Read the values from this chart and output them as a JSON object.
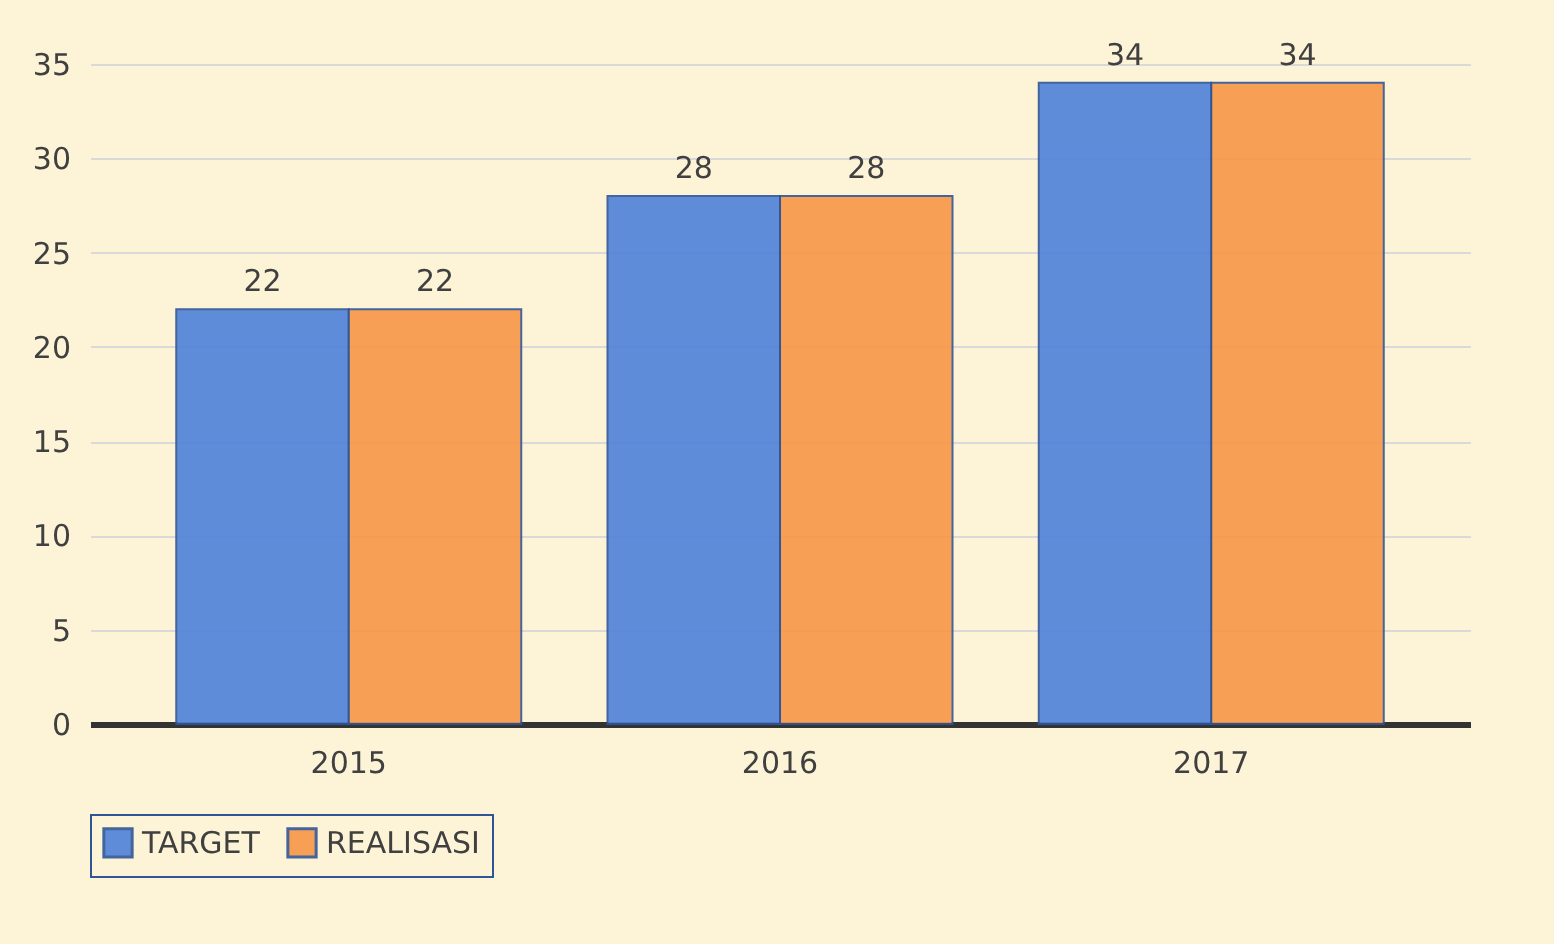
{
  "chart_data": {
    "type": "bar",
    "categories": [
      "2015",
      "2016",
      "2017"
    ],
    "series": [
      {
        "name": "TARGET",
        "color": "#4f81d9",
        "values": [
          22,
          28,
          34
        ]
      },
      {
        "name": "REALISASI",
        "color": "#f79646",
        "values": [
          22,
          28,
          34
        ]
      }
    ],
    "ylim": [
      0,
      35
    ],
    "yticks": [
      0,
      5,
      10,
      15,
      20,
      25,
      30,
      35
    ],
    "grid": "y",
    "legend": "bottom",
    "data_labels": true
  }
}
